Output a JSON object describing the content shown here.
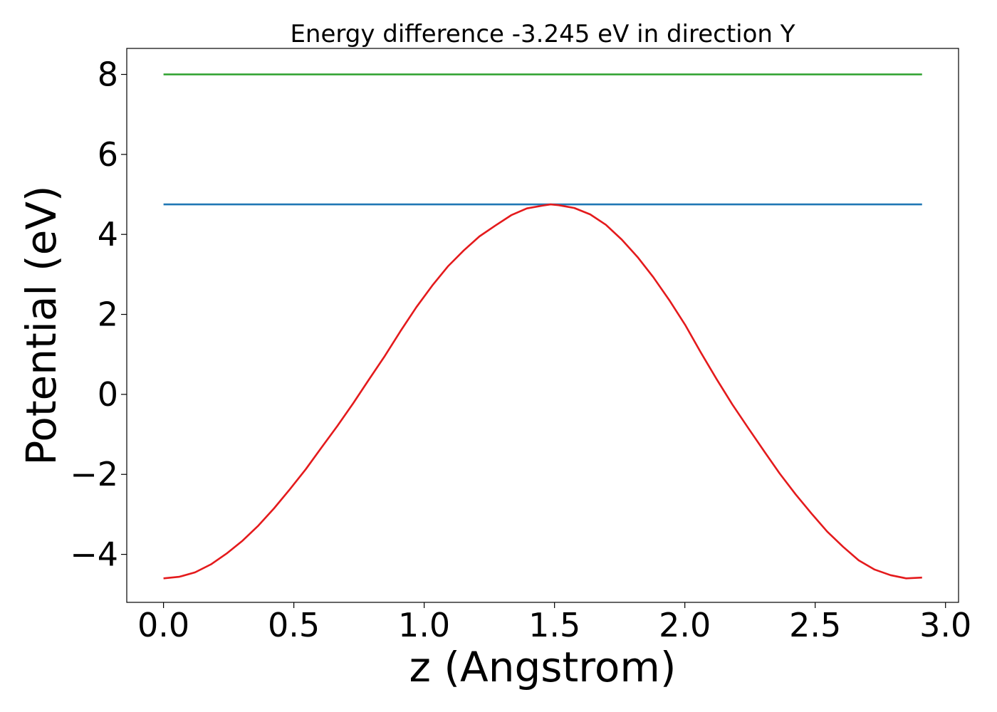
{
  "chart_data": {
    "type": "line",
    "title": "Energy difference -3.245 eV in direction Y",
    "xlabel": "z (Angstrom)",
    "ylabel": "Potential (eV)",
    "xlim": [
      -0.141,
      3.05
    ],
    "ylim": [
      -5.2,
      8.65
    ],
    "xticks": [
      0.0,
      0.5,
      1.0,
      1.5,
      2.0,
      2.5,
      3.0
    ],
    "xtick_labels": [
      "0.0",
      "0.5",
      "1.0",
      "1.5",
      "2.0",
      "2.5",
      "3.0"
    ],
    "yticks": [
      -4,
      -2,
      0,
      2,
      4,
      6,
      8
    ],
    "ytick_labels": [
      "−4",
      "−2",
      "0",
      "2",
      "4",
      "6",
      "8"
    ],
    "grid": false,
    "series": [
      {
        "color": "#1f77b4",
        "x": [
          0.0,
          2.91
        ],
        "y": [
          4.75,
          4.75
        ]
      },
      {
        "color": "#2ca02c",
        "x": [
          0.0,
          2.91
        ],
        "y": [
          8.0,
          8.0
        ]
      },
      {
        "color": "#e41a1c",
        "x": [
          0.0,
          0.061,
          0.121,
          0.182,
          0.242,
          0.303,
          0.364,
          0.424,
          0.485,
          0.546,
          0.606,
          0.667,
          0.728,
          0.788,
          0.849,
          0.909,
          0.97,
          1.031,
          1.091,
          1.152,
          1.212,
          1.273,
          1.334,
          1.394,
          1.455,
          1.485,
          1.516,
          1.576,
          1.637,
          1.697,
          1.758,
          1.819,
          1.879,
          1.94,
          2.001,
          2.061,
          2.122,
          2.182,
          2.243,
          2.304,
          2.364,
          2.425,
          2.486,
          2.546,
          2.607,
          2.667,
          2.728,
          2.789,
          2.849,
          2.91
        ],
        "y": [
          -4.6,
          -4.56,
          -4.45,
          -4.25,
          -3.98,
          -3.66,
          -3.28,
          -2.85,
          -2.37,
          -1.87,
          -1.33,
          -0.79,
          -0.22,
          0.37,
          0.96,
          1.58,
          2.18,
          2.72,
          3.2,
          3.6,
          3.95,
          4.22,
          4.48,
          4.65,
          4.72,
          4.75,
          4.73,
          4.66,
          4.5,
          4.24,
          3.87,
          3.43,
          2.93,
          2.36,
          1.74,
          1.05,
          0.38,
          -0.25,
          -0.84,
          -1.42,
          -1.98,
          -2.5,
          -2.98,
          -3.43,
          -3.81,
          -4.15,
          -4.38,
          -4.52,
          -4.6,
          -4.58
        ]
      }
    ]
  }
}
